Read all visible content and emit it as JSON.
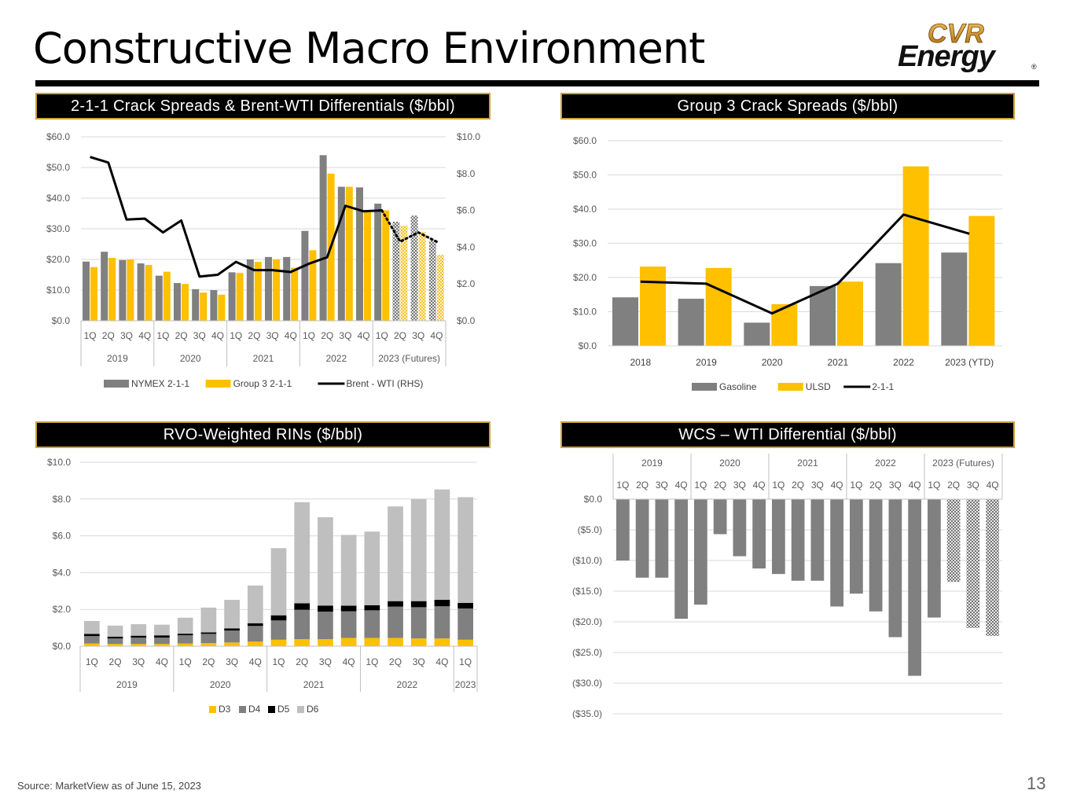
{
  "page": {
    "title": "Constructive Macro Environment",
    "source": "Source:  MarketView as of June 15, 2023",
    "page_number": "13",
    "logo": {
      "line1": "CVR",
      "line2": "Energy",
      "mark": "®"
    }
  },
  "colors": {
    "nymex": "#808080",
    "group3": "#FFC000",
    "line": "#000000",
    "d3": "#FFC000",
    "d4": "#808080",
    "d5": "#000000",
    "d6": "#BFBFBF",
    "panel_border": "#C9A23A"
  },
  "chart_data": [
    {
      "id": "crack",
      "type": "bar",
      "title": "2-1-1 Crack Spreads & Brent-WTI Differentials ($/bbl)",
      "categories": [
        "1Q",
        "2Q",
        "3Q",
        "4Q",
        "1Q",
        "2Q",
        "3Q",
        "4Q",
        "1Q",
        "2Q",
        "3Q",
        "4Q",
        "1Q",
        "2Q",
        "3Q",
        "4Q",
        "1Q",
        "2Q",
        "3Q",
        "4Q"
      ],
      "groups": [
        "2019",
        "2020",
        "2021",
        "2022",
        "2023 (Futures)"
      ],
      "ylim": [
        0,
        60
      ],
      "y2lim": [
        0,
        10
      ],
      "y_ticks": [
        "$0.0",
        "$10.0",
        "$20.0",
        "$30.0",
        "$40.0",
        "$50.0",
        "$60.0"
      ],
      "y2_ticks": [
        "$0.0",
        "$2.0",
        "$4.0",
        "$6.0",
        "$8.0",
        "$10.0"
      ],
      "series": [
        {
          "name": "NYMEX 2-1-1",
          "kind": "bar",
          "values": [
            19.3,
            22.5,
            19.8,
            18.7,
            14.7,
            12.3,
            10.3,
            10.0,
            15.8,
            20.0,
            20.8,
            20.8,
            29.3,
            54.0,
            43.7,
            43.5,
            38.2,
            32.3,
            34.3,
            26.2
          ]
        },
        {
          "name": "Group 3 2-1-1",
          "kind": "bar",
          "values": [
            17.5,
            20.5,
            20.0,
            18.2,
            16.0,
            12.0,
            9.2,
            8.5,
            15.6,
            19.2,
            20.0,
            17.3,
            23.0,
            48.0,
            43.7,
            36.0,
            36.0,
            31.0,
            29.0,
            21.5
          ]
        },
        {
          "name": "Brent - WTI (RHS)",
          "kind": "line",
          "axis": "right",
          "values": [
            8.9,
            8.6,
            5.5,
            5.55,
            4.8,
            5.45,
            2.4,
            2.5,
            3.2,
            2.75,
            2.75,
            2.65,
            3.1,
            3.45,
            6.25,
            5.95,
            6.0,
            4.3,
            4.8,
            4.3
          ]
        }
      ],
      "futures_from_index": 17,
      "legend": [
        "NYMEX 2-1-1",
        "Group 3 2-1-1",
        "Brent - WTI (RHS)"
      ]
    },
    {
      "id": "group3",
      "type": "bar",
      "title": "Group 3 Crack Spreads ($/bbl)",
      "categories": [
        "2018",
        "2019",
        "2020",
        "2021",
        "2022",
        "2023 (YTD)"
      ],
      "ylim": [
        0,
        60
      ],
      "y_ticks": [
        "$0.0",
        "$10.0",
        "$20.0",
        "$30.0",
        "$40.0",
        "$50.0",
        "$60.0"
      ],
      "series": [
        {
          "name": "Gasoline",
          "kind": "bar",
          "values": [
            14.2,
            13.8,
            6.8,
            17.5,
            24.2,
            27.3
          ]
        },
        {
          "name": "ULSD",
          "kind": "bar",
          "values": [
            23.2,
            22.8,
            12.2,
            18.8,
            52.5,
            38.0
          ]
        },
        {
          "name": "2-1-1",
          "kind": "line",
          "values": [
            18.8,
            18.2,
            9.5,
            18.2,
            38.4,
            32.8
          ]
        }
      ],
      "legend": [
        "Gasoline",
        "ULSD",
        "2-1-1"
      ]
    },
    {
      "id": "rins",
      "type": "bar",
      "stacked": true,
      "title": "RVO-Weighted RINs ($/bbl)",
      "categories": [
        "1Q",
        "2Q",
        "3Q",
        "4Q",
        "1Q",
        "2Q",
        "3Q",
        "4Q",
        "1Q",
        "2Q",
        "3Q",
        "4Q",
        "1Q",
        "2Q",
        "3Q",
        "4Q",
        "1Q"
      ],
      "groups": [
        "2019",
        "2020",
        "2021",
        "2022",
        "2023"
      ],
      "ylim": [
        0,
        10
      ],
      "y_ticks": [
        "$0.0",
        "$2.0",
        "$4.0",
        "$6.0",
        "$8.0",
        "$10.0"
      ],
      "series": [
        {
          "name": "D3",
          "values": [
            0.15,
            0.12,
            0.12,
            0.12,
            0.15,
            0.17,
            0.2,
            0.25,
            0.35,
            0.38,
            0.38,
            0.45,
            0.45,
            0.45,
            0.42,
            0.42,
            0.35
          ]
        },
        {
          "name": "D4",
          "values": [
            0.4,
            0.3,
            0.35,
            0.35,
            0.45,
            0.5,
            0.65,
            0.85,
            1.05,
            1.6,
            1.5,
            1.45,
            1.5,
            1.7,
            1.7,
            1.75,
            1.7
          ]
        },
        {
          "name": "D5",
          "values": [
            0.12,
            0.1,
            0.1,
            0.12,
            0.08,
            0.08,
            0.12,
            0.15,
            0.28,
            0.35,
            0.33,
            0.3,
            0.28,
            0.3,
            0.33,
            0.35,
            0.3
          ]
        },
        {
          "name": "D6",
          "values": [
            0.7,
            0.6,
            0.63,
            0.58,
            0.87,
            1.35,
            1.55,
            2.05,
            3.65,
            5.5,
            4.8,
            3.85,
            4.0,
            5.15,
            5.55,
            6.0,
            5.75
          ]
        }
      ],
      "legend": [
        "D3",
        "D4",
        "D5",
        "D6"
      ]
    },
    {
      "id": "wcs",
      "type": "bar",
      "title": "WCS – WTI Differential ($/bbl)",
      "categories": [
        "1Q",
        "2Q",
        "3Q",
        "4Q",
        "1Q",
        "2Q",
        "3Q",
        "4Q",
        "1Q",
        "2Q",
        "3Q",
        "4Q",
        "1Q",
        "2Q",
        "3Q",
        "4Q",
        "1Q",
        "2Q",
        "3Q",
        "4Q"
      ],
      "groups": [
        "2019",
        "2020",
        "2021",
        "2022",
        "2023 (Futures)"
      ],
      "ylim": [
        -35,
        0
      ],
      "y_ticks": [
        "$0.0",
        "($5.0)",
        "($10.0)",
        "($15.0)",
        "($20.0)",
        "($25.0)",
        "($30.0)",
        "($35.0)"
      ],
      "values": [
        -10.0,
        -12.8,
        -12.8,
        -19.5,
        -17.2,
        -5.7,
        -9.3,
        -11.3,
        -12.2,
        -13.3,
        -13.3,
        -17.5,
        -15.4,
        -18.3,
        -22.5,
        -28.8,
        -19.3,
        -13.5,
        -21.0,
        -22.3
      ],
      "futures_from_index": 17
    }
  ]
}
